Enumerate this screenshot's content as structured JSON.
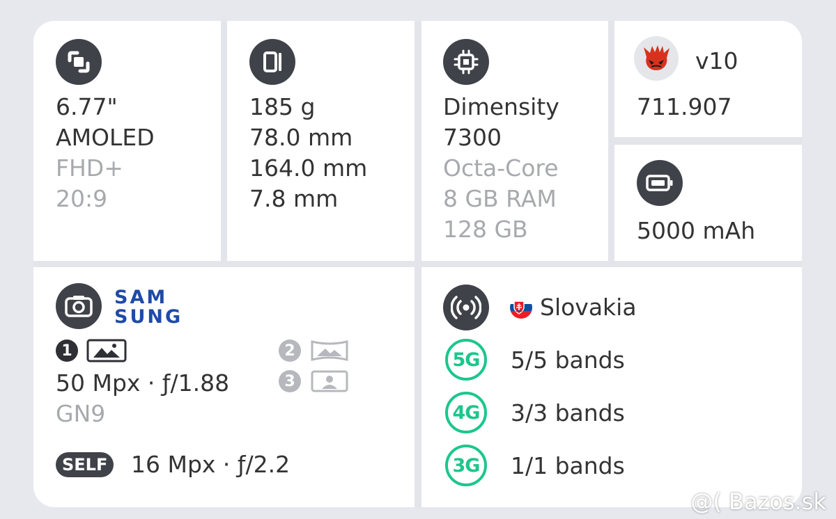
{
  "display": {
    "lines": [
      "6.77\"",
      "AMOLED",
      "FHD+",
      "20:9"
    ],
    "icon": "display-size-icon"
  },
  "body": {
    "lines": [
      "185 g",
      "78.0 mm",
      "164.0 mm",
      "7.8 mm"
    ],
    "icon": "phone-body-icon"
  },
  "chipset": {
    "lines": [
      "Dimensity",
      "7300",
      "Octa-Core",
      "8 GB RAM",
      "128 GB"
    ],
    "icon": "chip-icon"
  },
  "antutu": {
    "version": "v10",
    "score": "711.907",
    "icon": "antutu-logo-icon"
  },
  "battery": {
    "capacity": "5000 mAh",
    "icon": "battery-icon"
  },
  "camera": {
    "icon": "camera-icon",
    "brand_line1": "SAM",
    "brand_line2": "SUNG",
    "lens1_num": "1",
    "lens2_num": "2",
    "lens3_num": "3",
    "main_spec": "50 Mpx · ƒ/1.88",
    "sensor": "GN9",
    "selfie_label": "SELF",
    "selfie_spec": "16 Mpx · ƒ/2.2"
  },
  "network": {
    "icon": "signal-icon",
    "country": "Slovakia",
    "country_icon": "slovakia-flag-icon",
    "bands": [
      {
        "gen": "5G",
        "text": "5/5 bands"
      },
      {
        "gen": "4G",
        "text": "3/3 bands"
      },
      {
        "gen": "3G",
        "text": "1/1 bands"
      }
    ]
  },
  "watermark": "@( Bazos.sk",
  "colors": {
    "accent_green": "#1cc68c",
    "icon_dark": "#404249",
    "samsung_blue": "#1f4aa8",
    "muted_text": "#a7a9ad"
  }
}
